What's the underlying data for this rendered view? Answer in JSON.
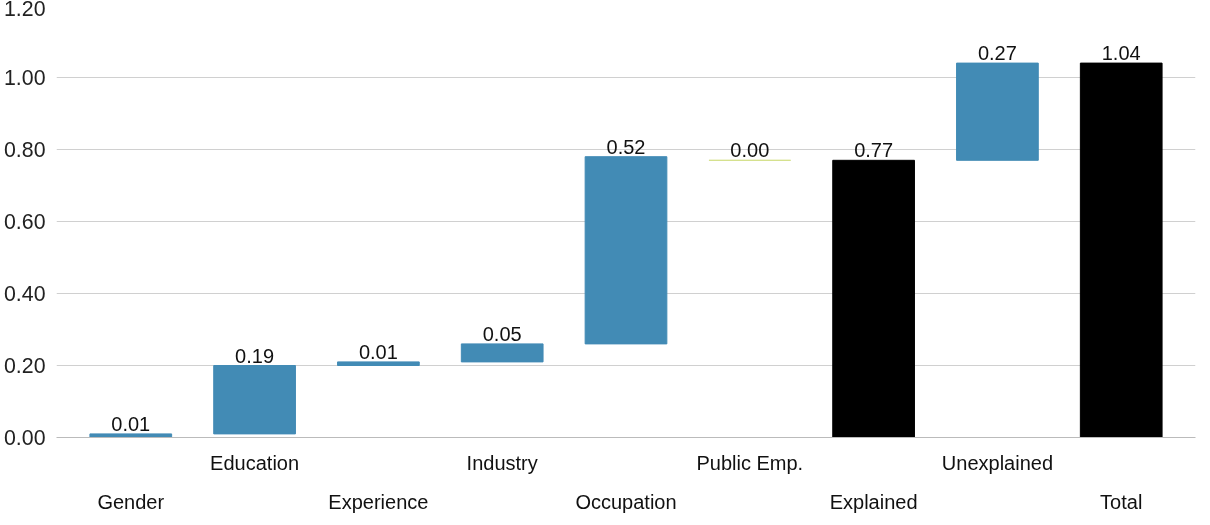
{
  "chart_data": {
    "type": "bar",
    "categories": [
      "Gender",
      "Education",
      "Experience",
      "Industry",
      "Occupation",
      "Public Emp.",
      "Explained",
      "Unexplained",
      "Total"
    ],
    "values": [
      0.01,
      0.19,
      0.01,
      0.05,
      0.52,
      0.0,
      0.77,
      0.27,
      1.04
    ],
    "base": [
      0,
      0.01,
      0.2,
      0.21,
      0.26,
      0.77,
      0,
      0.77,
      0
    ],
    "colors": [
      "#428bb5",
      "#428bb5",
      "#428bb5",
      "#428bb5",
      "#428bb5",
      "#d4e08a",
      "#000000",
      "#428bb5",
      "#000000"
    ],
    "ylim": [
      0,
      1.2
    ],
    "yticks": [
      {
        "value": 0,
        "label": "0.00"
      },
      {
        "value": 0.2,
        "label": "0.20"
      },
      {
        "value": 0.4,
        "label": "0.40"
      },
      {
        "value": 0.6,
        "label": "0.60"
      },
      {
        "value": 0.8,
        "label": "0.80"
      },
      {
        "value": 1.0,
        "label": "1.00"
      },
      {
        "value": 1.2,
        "label": "1.20"
      }
    ],
    "value_labels": [
      "0.01",
      "0.19",
      "0.01",
      "0.05",
      "0.52",
      "0.00",
      "0.77",
      "0.27",
      "1.04"
    ],
    "grid": "y"
  }
}
